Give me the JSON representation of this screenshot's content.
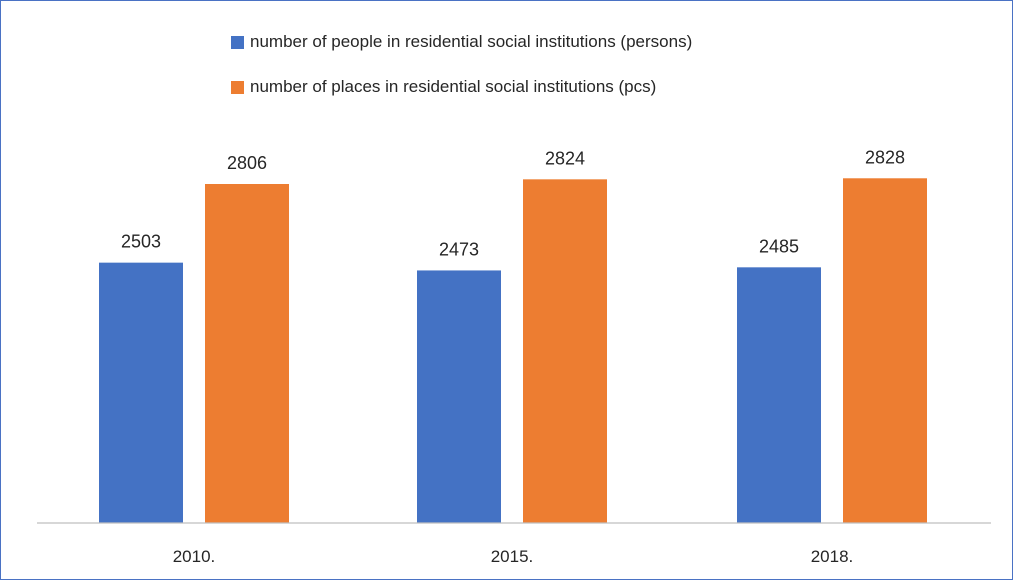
{
  "chart_data": {
    "type": "bar",
    "categories": [
      "2010.",
      "2015.",
      "2018."
    ],
    "series": [
      {
        "name": "number of people in residential social institutions (persons)",
        "color": "#4472c4",
        "values": [
          2503,
          2473,
          2485
        ]
      },
      {
        "name": "number of places in residential social institutions (pcs)",
        "color": "#ed7d31",
        "values": [
          2806,
          2824,
          2828
        ]
      }
    ],
    "ylim": [
      1500,
      3000
    ],
    "legend_position": "top",
    "grid": false
  }
}
